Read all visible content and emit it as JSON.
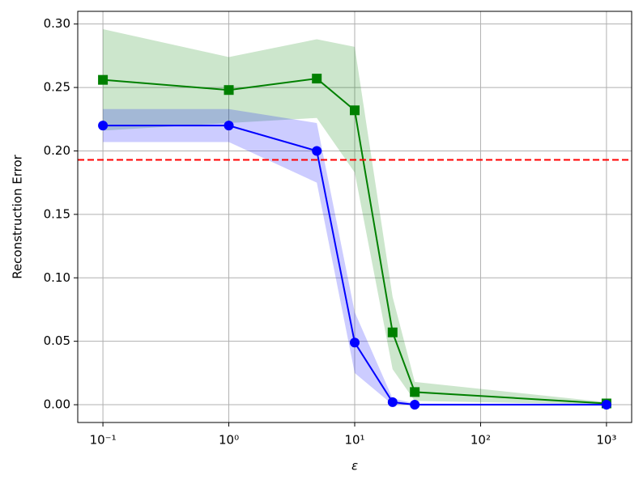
{
  "chart_data": {
    "type": "line",
    "xlabel": "ε",
    "ylabel": "Reconstruction Error",
    "x": [
      0.1,
      1,
      5,
      10,
      20,
      30,
      1000
    ],
    "xscale": "log",
    "xlim": [
      0.0631,
      1585
    ],
    "ylim": [
      -0.014,
      0.31
    ],
    "xticks": [
      {
        "value": 0.1,
        "label": "10⁻¹"
      },
      {
        "value": 1,
        "label": "10⁰"
      },
      {
        "value": 10,
        "label": "10¹"
      },
      {
        "value": 100,
        "label": "10²"
      },
      {
        "value": 1000,
        "label": "10³"
      }
    ],
    "yticks": [
      {
        "value": 0,
        "label": "0.00"
      },
      {
        "value": 0.05,
        "label": "0.05"
      },
      {
        "value": 0.1,
        "label": "0.10"
      },
      {
        "value": 0.15,
        "label": "0.15"
      },
      {
        "value": 0.2,
        "label": "0.20"
      },
      {
        "value": 0.25,
        "label": "0.25"
      },
      {
        "value": 0.3,
        "label": "0.30"
      }
    ],
    "grid": true,
    "hline": {
      "value": 0.193,
      "color": "#ff0000"
    },
    "series": [
      {
        "color": "#008000",
        "marker": "square",
        "values": [
          0.256,
          0.248,
          0.257,
          0.232,
          0.057,
          0.01,
          0.001
        ],
        "lower": [
          0.216,
          0.222,
          0.226,
          0.183,
          0.028,
          0.003,
          0.0
        ],
        "upper": [
          0.296,
          0.274,
          0.288,
          0.282,
          0.085,
          0.018,
          0.002
        ]
      },
      {
        "color": "#0000ff",
        "marker": "circle",
        "values": [
          0.22,
          0.22,
          0.2,
          0.049,
          0.002,
          0.0,
          0.0
        ],
        "lower": [
          0.207,
          0.207,
          0.175,
          0.025,
          0.0,
          0.0,
          0.0
        ],
        "upper": [
          0.233,
          0.233,
          0.222,
          0.073,
          0.005,
          0.001,
          0.001
        ]
      }
    ]
  }
}
